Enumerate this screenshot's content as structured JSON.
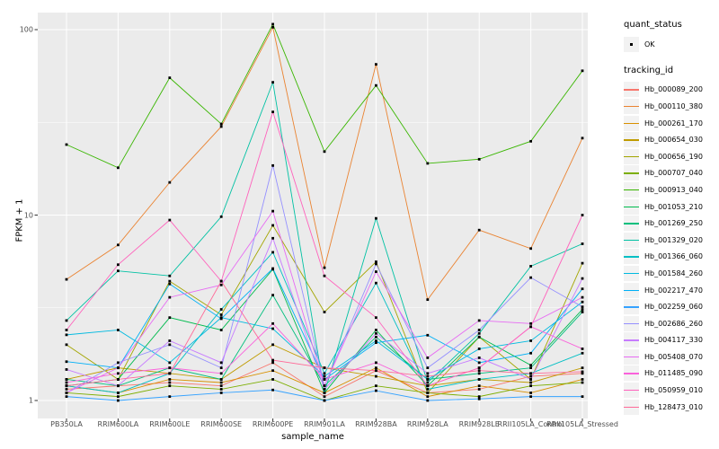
{
  "figure": {
    "xlabel": "sample_name",
    "ylabel": "FPKM + 1",
    "y_tick_labels": [
      "100",
      "10",
      "1"
    ]
  },
  "legend": {
    "quant_status_title": "quant_status",
    "quant_status_items": [
      {
        "label": "OK",
        "marker": "black-point"
      }
    ],
    "tracking_title": "tracking_id"
  },
  "colors": {
    "panel_bg": "#EBEBEB",
    "grid": "#FFFFFF",
    "marker": "#000000",
    "legend_key_bg": "#F2F2F2",
    "tick": "#333333",
    "tick_label": "#4D4D4D"
  },
  "chart_data": {
    "type": "line",
    "title": "",
    "xlabel": "sample_name",
    "ylabel": "FPKM + 1",
    "y_scale": "log10",
    "ylim": [
      0.8,
      125
    ],
    "y_ticks": [
      1,
      10,
      100
    ],
    "y_minor_gridlines": [
      3.1623,
      31.623
    ],
    "grid": true,
    "legend_position": "right",
    "quant_status": "OK",
    "categories": [
      "PB350LA",
      "RRIM600LA",
      "RRIM600LE",
      "RRIM600SE",
      "RRIM600PE",
      "RRIM901LA",
      "RRIM928BA",
      "RRIM928LA",
      "RRIM928LE",
      "RRII105LA_Control",
      "RRII105LA_Stressed"
    ],
    "series": [
      {
        "name": "Hb_000089_200",
        "color": "#F8766D",
        "values": [
          1.15,
          1.2,
          1.25,
          1.2,
          1.6,
          1.05,
          1.45,
          1.1,
          1.15,
          1.35,
          1.4
        ]
      },
      {
        "name": "Hb_000110_380",
        "color": "#EA8331",
        "values": [
          4.5,
          6.9,
          15,
          30,
          103,
          5.2,
          65,
          3.5,
          8.3,
          6.6,
          26
        ]
      },
      {
        "name": "Hb_000261_170",
        "color": "#D89000",
        "values": [
          1.2,
          1.1,
          1.3,
          1.25,
          1.45,
          1.1,
          1.5,
          1.05,
          1.2,
          1.1,
          1.3
        ]
      },
      {
        "name": "Hb_000654_030",
        "color": "#C09B00",
        "values": [
          1.3,
          1.5,
          1.4,
          1.3,
          2.0,
          1.5,
          1.35,
          1.2,
          1.3,
          1.25,
          1.5
        ]
      },
      {
        "name": "Hb_000656_190",
        "color": "#A3A500",
        "values": [
          2.0,
          1.3,
          4.4,
          2.9,
          8.8,
          3.0,
          5.6,
          1.1,
          2.2,
          1.3,
          5.5
        ]
      },
      {
        "name": "Hb_000707_040",
        "color": "#7CAE00",
        "values": [
          1.1,
          1.05,
          1.2,
          1.15,
          1.3,
          1.0,
          1.2,
          1.1,
          1.05,
          1.2,
          1.25
        ]
      },
      {
        "name": "Hb_000913_040",
        "color": "#39B600",
        "values": [
          24,
          18,
          55,
          31,
          107,
          22,
          50,
          19,
          20,
          25,
          60
        ]
      },
      {
        "name": "Hb_001053_210",
        "color": "#00BB4E",
        "values": [
          1.2,
          1.3,
          2.8,
          2.4,
          5.1,
          1.1,
          2.4,
          1.2,
          2.2,
          1.55,
          3.1
        ]
      },
      {
        "name": "Hb_001269_250",
        "color": "#00BF7D",
        "values": [
          1.3,
          1.2,
          1.5,
          1.3,
          3.7,
          1.2,
          2.2,
          1.3,
          1.4,
          1.5,
          3.0
        ]
      },
      {
        "name": "Hb_001329_020",
        "color": "#00C1A3",
        "values": [
          2.7,
          5.0,
          4.7,
          9.8,
          52,
          1.1,
          9.6,
          1.25,
          2.3,
          5.3,
          7.0
        ]
      },
      {
        "name": "Hb_001366_060",
        "color": "#00BFC4",
        "values": [
          1.2,
          1.1,
          1.4,
          3.1,
          6.3,
          1.4,
          4.3,
          1.15,
          1.3,
          1.4,
          1.8
        ]
      },
      {
        "name": "Hb_001584_260",
        "color": "#00BAE0",
        "values": [
          2.26,
          2.4,
          1.6,
          2.8,
          2.44,
          1.35,
          2.1,
          1.3,
          1.9,
          2.1,
          3.4
        ]
      },
      {
        "name": "Hb_002217_470",
        "color": "#00B0F6",
        "values": [
          1.62,
          1.5,
          4.25,
          2.76,
          5.15,
          1.3,
          2.05,
          2.25,
          1.6,
          1.8,
          4.0
        ]
      },
      {
        "name": "Hb_002259_060",
        "color": "#35A2FF",
        "values": [
          1.05,
          1.0,
          1.05,
          1.1,
          1.14,
          1.0,
          1.13,
          1.0,
          1.02,
          1.05,
          1.05
        ]
      },
      {
        "name": "Hb_002686_260",
        "color": "#9590FF",
        "values": [
          1.1,
          1.6,
          2.0,
          1.5,
          18.5,
          1.2,
          5.45,
          1.5,
          2.4,
          4.6,
          3.2
        ]
      },
      {
        "name": "Hb_004117_330",
        "color": "#C77CFF",
        "values": [
          1.47,
          1.2,
          2.1,
          1.6,
          7.5,
          1.15,
          2.3,
          1.4,
          1.7,
          1.3,
          4.55
        ]
      },
      {
        "name": "Hb_005408_070",
        "color": "#E76BF3",
        "values": [
          1.1,
          1.5,
          3.6,
          4.2,
          10.5,
          1.2,
          4.95,
          1.7,
          2.7,
          2.6,
          3.6
        ]
      },
      {
        "name": "Hb_011485_090",
        "color": "#FA62DB",
        "values": [
          1.25,
          1.4,
          1.5,
          1.4,
          2.6,
          1.3,
          1.6,
          1.2,
          1.5,
          2.5,
          1.9
        ]
      },
      {
        "name": "Hb_050959_010",
        "color": "#FF62BC",
        "values": [
          2.4,
          5.4,
          9.4,
          4.4,
          36,
          4.7,
          2.8,
          1.2,
          1.5,
          2.5,
          10
        ]
      },
      {
        "name": "Hb_128473_010",
        "color": "#FF6A98",
        "values": [
          1.2,
          1.3,
          1.4,
          4.4,
          1.65,
          1.5,
          1.45,
          1.35,
          1.45,
          1.4,
          1.43
        ]
      }
    ]
  }
}
